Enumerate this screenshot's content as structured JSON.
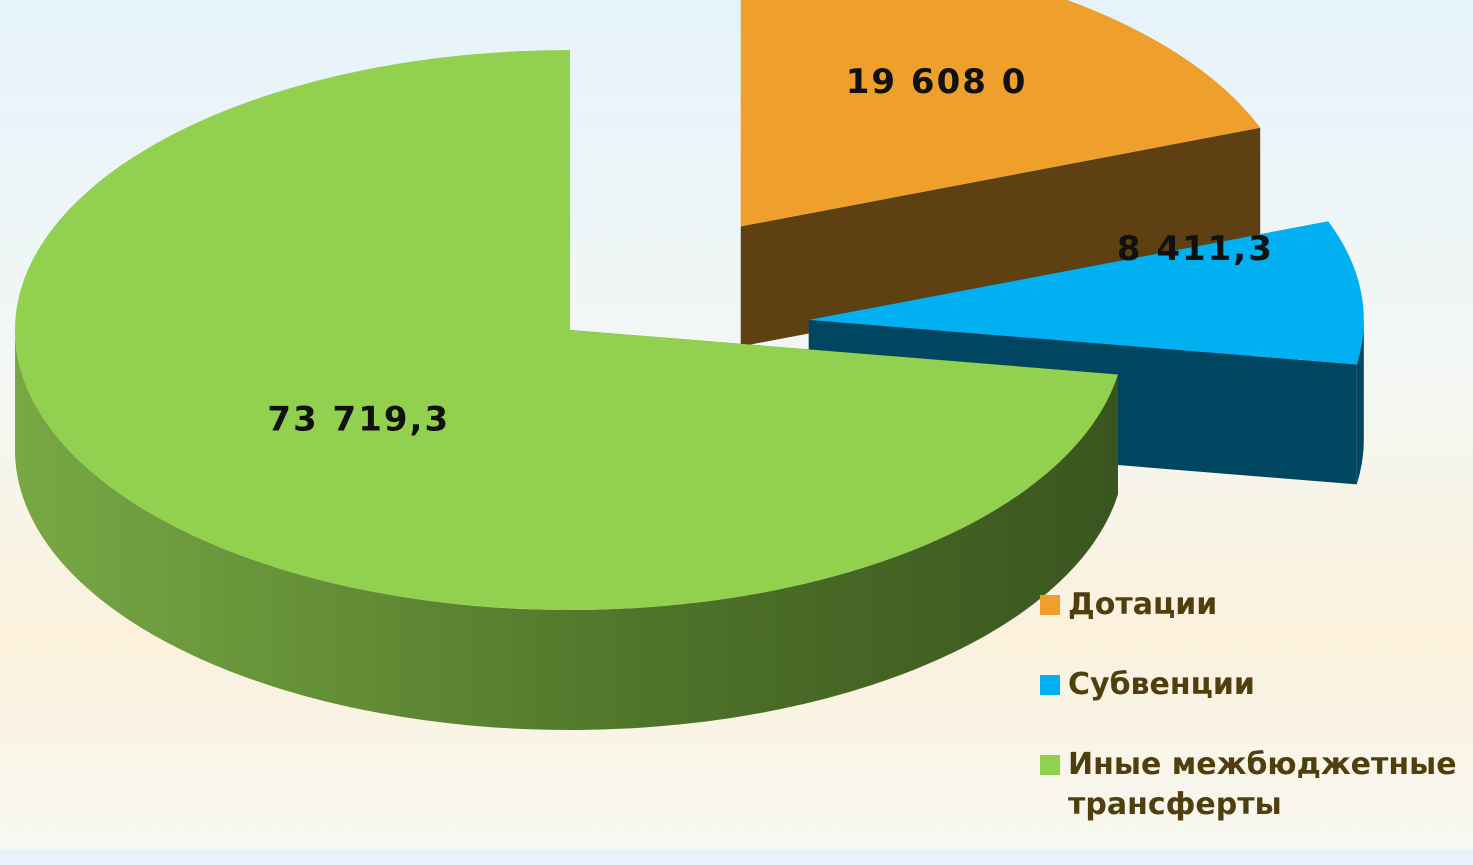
{
  "chart_data": {
    "type": "pie",
    "categories": [
      "Дотации",
      "Субвенции",
      "Иные межбюджетные трансферты"
    ],
    "values": [
      19608.0,
      8411.3,
      73719.3
    ],
    "value_labels": [
      "19 608 0",
      "8 411,3",
      "73 719,3"
    ],
    "colors": [
      "#ee9f2c",
      "#00b0f0",
      "#92d050"
    ],
    "legend": "bottom-right"
  }
}
